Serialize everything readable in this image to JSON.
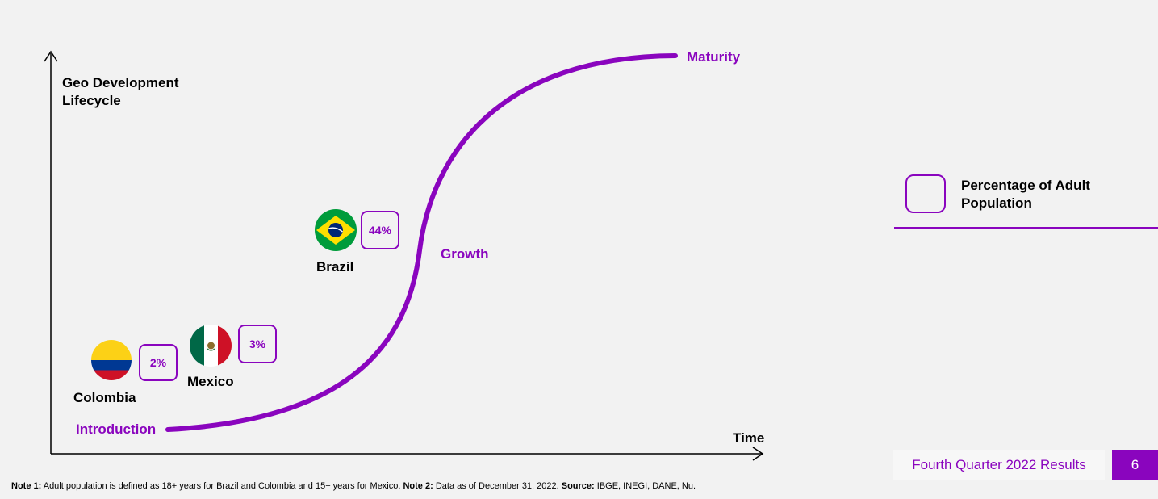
{
  "diagram": {
    "axis_title": "Geo Development Lifecycle",
    "x_axis_label": "Time",
    "stages": {
      "introduction": "Introduction",
      "growth": "Growth",
      "maturity": "Maturity"
    },
    "countries": [
      {
        "name": "Colombia",
        "percentage": "2%",
        "flag": "colombia-flag"
      },
      {
        "name": "Mexico",
        "percentage": "3%",
        "flag": "mexico-flag"
      },
      {
        "name": "Brazil",
        "percentage": "44%",
        "flag": "brazil-flag"
      }
    ],
    "accent_color": "#8a05be"
  },
  "legend": {
    "label": "Percentage of Adult Population"
  },
  "footer": {
    "report_label": "Fourth Quarter 2022 Results",
    "page_number": "6"
  },
  "note": {
    "note1_label": "Note 1:",
    "note1_text": " Adult population is defined as 18+ years for Brazil and Colombia and 15+ years for Mexico. ",
    "note2_label": "Note 2:",
    "note2_text": " Data as of December 31, 2022. ",
    "source_label": "Source:",
    "source_text": " IBGE, INEGI, DANE, Nu."
  }
}
